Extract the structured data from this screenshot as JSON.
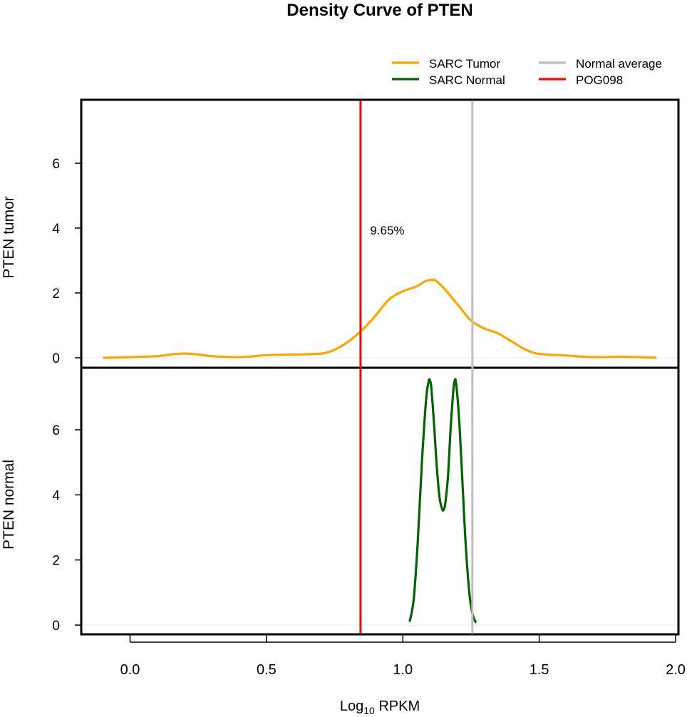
{
  "chart_data": {
    "type": "line",
    "title": "Density Curve of  PTEN",
    "xlabel_main": "Log",
    "xlabel_sub": "10",
    "xlabel_tail": " RPKM",
    "xlim": [
      -0.18,
      2.01
    ],
    "x_ticks": [
      0.0,
      0.5,
      1.0,
      1.5,
      2.0
    ],
    "x_tick_labels": [
      "0.0",
      "0.5",
      "1.0",
      "1.5",
      "2.0"
    ],
    "legend_position": "top-right",
    "legend": [
      {
        "label": "SARC  Tumor",
        "color": "#FFA500"
      },
      {
        "label": "SARC  Normal",
        "color": "#006400"
      },
      {
        "label": "Normal  average",
        "color": "#BEBEBE"
      },
      {
        "label": "POG098",
        "color": "#FF0000"
      }
    ],
    "vlines": [
      {
        "name": "POG098",
        "x": 0.845,
        "color": "#FF0000"
      },
      {
        "name": "Normal average",
        "x": 1.255,
        "color": "#BEBEBE"
      }
    ],
    "annotation": {
      "text": "9.65%",
      "x": 0.88,
      "y": 3.8,
      "color": "#FF0000"
    },
    "panels": [
      {
        "ylabel": "PTEN  tumor",
        "ylim": [
          0,
          7.9
        ],
        "y_ticks": [
          0,
          2,
          4,
          6
        ],
        "y_tick_labels": [
          "0",
          "2",
          "4",
          "6"
        ],
        "series": [
          {
            "name": "SARC  Tumor",
            "color": "#FFA500",
            "x": [
              -0.1,
              0.0,
              0.1,
              0.15,
              0.2,
              0.25,
              0.3,
              0.4,
              0.5,
              0.6,
              0.7,
              0.75,
              0.8,
              0.85,
              0.9,
              0.95,
              1.0,
              1.05,
              1.08,
              1.1,
              1.12,
              1.15,
              1.2,
              1.25,
              1.3,
              1.35,
              1.4,
              1.45,
              1.5,
              1.6,
              1.7,
              1.8,
              1.9,
              1.93
            ],
            "y": [
              0.0,
              0.02,
              0.05,
              0.1,
              0.13,
              0.1,
              0.05,
              0.02,
              0.08,
              0.1,
              0.13,
              0.25,
              0.5,
              0.85,
              1.3,
              1.8,
              2.05,
              2.2,
              2.35,
              2.4,
              2.38,
              2.15,
              1.65,
              1.15,
              0.9,
              0.75,
              0.5,
              0.25,
              0.12,
              0.07,
              0.02,
              0.03,
              0.01,
              0.0
            ]
          }
        ]
      },
      {
        "ylabel": "PTEN  normal",
        "ylim": [
          -0.3,
          7.9
        ],
        "y_ticks": [
          0,
          2,
          4,
          6
        ],
        "y_tick_labels": [
          "0",
          "2",
          "4",
          "6"
        ],
        "series": [
          {
            "name": "SARC  Normal",
            "color": "#006400",
            "x": [
              1.025,
              1.04,
              1.055,
              1.07,
              1.085,
              1.095,
              1.1,
              1.105,
              1.115,
              1.125,
              1.135,
              1.145,
              1.15,
              1.155,
              1.165,
              1.175,
              1.185,
              1.19,
              1.195,
              1.205,
              1.215,
              1.225,
              1.235,
              1.245,
              1.255,
              1.265,
              1.27
            ],
            "y": [
              0.1,
              0.8,
              2.6,
              5.0,
              6.9,
              7.5,
              7.5,
              7.25,
              6.1,
              4.8,
              3.9,
              3.55,
              3.55,
              3.7,
              4.5,
              6.0,
              7.2,
              7.5,
              7.45,
              6.5,
              5.0,
              3.3,
              1.9,
              0.9,
              0.35,
              0.12,
              0.08
            ]
          }
        ]
      }
    ]
  }
}
